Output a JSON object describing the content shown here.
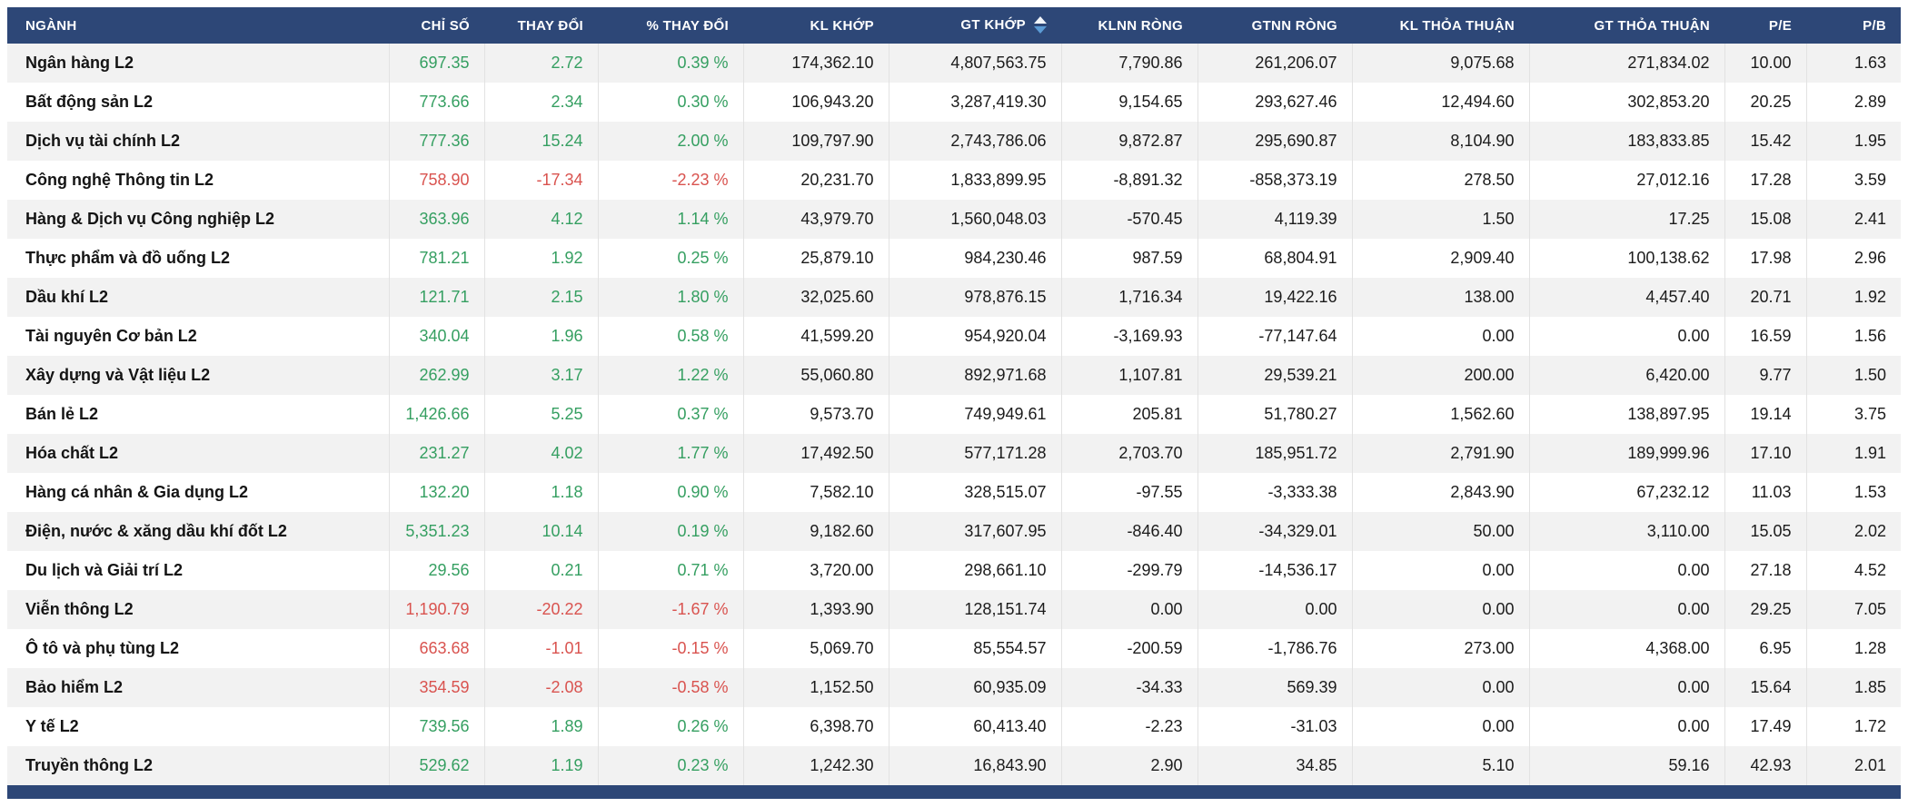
{
  "colors": {
    "header_bg": "#2d4777",
    "positive": "#359f61",
    "negative": "#d9534f",
    "row_alternate": "#f2f2f2",
    "sort_arrow_active": "#5b9bd5"
  },
  "table": {
    "sorted_by": "GT KHỚP",
    "columns": [
      {
        "key": "nganh",
        "label": "NGÀNH"
      },
      {
        "key": "chi-so",
        "label": "CHỈ SỐ"
      },
      {
        "key": "thay-doi",
        "label": "THAY ĐỔI"
      },
      {
        "key": "pct-thay-doi",
        "label": "% THAY ĐỔI"
      },
      {
        "key": "kl-khop",
        "label": "KL KHỚP"
      },
      {
        "key": "gt-khop",
        "label": "GT KHỚP"
      },
      {
        "key": "klnn-rong",
        "label": "KLNN RÒNG"
      },
      {
        "key": "gtnn-rong",
        "label": "GTNN RÒNG"
      },
      {
        "key": "kl-thoa-thuan",
        "label": "KL THỎA THUẬN"
      },
      {
        "key": "gt-thoa-thuan",
        "label": "GT THỎA THUẬN"
      },
      {
        "key": "pe",
        "label": "P/E"
      },
      {
        "key": "pb",
        "label": "P/B"
      }
    ],
    "rows": [
      {
        "name": "Ngân hàng L2",
        "trend": "up",
        "values": [
          "697.35",
          "2.72",
          "0.39 %",
          "174,362.10",
          "4,807,563.75",
          "7,790.86",
          "261,206.07",
          "9,075.68",
          "271,834.02",
          "10.00",
          "1.63"
        ]
      },
      {
        "name": "Bất động sản L2",
        "trend": "up",
        "values": [
          "773.66",
          "2.34",
          "0.30 %",
          "106,943.20",
          "3,287,419.30",
          "9,154.65",
          "293,627.46",
          "12,494.60",
          "302,853.20",
          "20.25",
          "2.89"
        ]
      },
      {
        "name": "Dịch vụ tài chính L2",
        "trend": "up",
        "values": [
          "777.36",
          "15.24",
          "2.00 %",
          "109,797.90",
          "2,743,786.06",
          "9,872.87",
          "295,690.87",
          "8,104.90",
          "183,833.85",
          "15.42",
          "1.95"
        ]
      },
      {
        "name": "Công nghệ Thông tin L2",
        "trend": "down",
        "values": [
          "758.90",
          "-17.34",
          "-2.23 %",
          "20,231.70",
          "1,833,899.95",
          "-8,891.32",
          "-858,373.19",
          "278.50",
          "27,012.16",
          "17.28",
          "3.59"
        ]
      },
      {
        "name": "Hàng & Dịch vụ Công nghiệp L2",
        "trend": "up",
        "values": [
          "363.96",
          "4.12",
          "1.14 %",
          "43,979.70",
          "1,560,048.03",
          "-570.45",
          "4,119.39",
          "1.50",
          "17.25",
          "15.08",
          "2.41"
        ]
      },
      {
        "name": "Thực phẩm và đồ uống L2",
        "trend": "up",
        "values": [
          "781.21",
          "1.92",
          "0.25 %",
          "25,879.10",
          "984,230.46",
          "987.59",
          "68,804.91",
          "2,909.40",
          "100,138.62",
          "17.98",
          "2.96"
        ]
      },
      {
        "name": "Dầu khí L2",
        "trend": "up",
        "values": [
          "121.71",
          "2.15",
          "1.80 %",
          "32,025.60",
          "978,876.15",
          "1,716.34",
          "19,422.16",
          "138.00",
          "4,457.40",
          "20.71",
          "1.92"
        ]
      },
      {
        "name": "Tài nguyên Cơ bản L2",
        "trend": "up",
        "values": [
          "340.04",
          "1.96",
          "0.58 %",
          "41,599.20",
          "954,920.04",
          "-3,169.93",
          "-77,147.64",
          "0.00",
          "0.00",
          "16.59",
          "1.56"
        ]
      },
      {
        "name": "Xây dựng và Vật liệu L2",
        "trend": "up",
        "values": [
          "262.99",
          "3.17",
          "1.22 %",
          "55,060.80",
          "892,971.68",
          "1,107.81",
          "29,539.21",
          "200.00",
          "6,420.00",
          "9.77",
          "1.50"
        ]
      },
      {
        "name": "Bán lẻ L2",
        "trend": "up",
        "values": [
          "1,426.66",
          "5.25",
          "0.37 %",
          "9,573.70",
          "749,949.61",
          "205.81",
          "51,780.27",
          "1,562.60",
          "138,897.95",
          "19.14",
          "3.75"
        ]
      },
      {
        "name": "Hóa chất L2",
        "trend": "up",
        "values": [
          "231.27",
          "4.02",
          "1.77 %",
          "17,492.50",
          "577,171.28",
          "2,703.70",
          "185,951.72",
          "2,791.90",
          "189,999.96",
          "17.10",
          "1.91"
        ]
      },
      {
        "name": "Hàng cá nhân & Gia dụng L2",
        "trend": "up",
        "values": [
          "132.20",
          "1.18",
          "0.90 %",
          "7,582.10",
          "328,515.07",
          "-97.55",
          "-3,333.38",
          "2,843.90",
          "67,232.12",
          "11.03",
          "1.53"
        ]
      },
      {
        "name": "Điện, nước & xăng dầu khí đốt L2",
        "trend": "up",
        "values": [
          "5,351.23",
          "10.14",
          "0.19 %",
          "9,182.60",
          "317,607.95",
          "-846.40",
          "-34,329.01",
          "50.00",
          "3,110.00",
          "15.05",
          "2.02"
        ]
      },
      {
        "name": "Du lịch và Giải trí L2",
        "trend": "up",
        "values": [
          "29.56",
          "0.21",
          "0.71 %",
          "3,720.00",
          "298,661.10",
          "-299.79",
          "-14,536.17",
          "0.00",
          "0.00",
          "27.18",
          "4.52"
        ]
      },
      {
        "name": "Viễn thông L2",
        "trend": "down",
        "values": [
          "1,190.79",
          "-20.22",
          "-1.67 %",
          "1,393.90",
          "128,151.74",
          "0.00",
          "0.00",
          "0.00",
          "0.00",
          "29.25",
          "7.05"
        ]
      },
      {
        "name": "Ô tô và phụ tùng L2",
        "trend": "down",
        "values": [
          "663.68",
          "-1.01",
          "-0.15 %",
          "5,069.70",
          "85,554.57",
          "-200.59",
          "-1,786.76",
          "273.00",
          "4,368.00",
          "6.95",
          "1.28"
        ]
      },
      {
        "name": "Bảo hiểm L2",
        "trend": "down",
        "values": [
          "354.59",
          "-2.08",
          "-0.58 %",
          "1,152.50",
          "60,935.09",
          "-34.33",
          "569.39",
          "0.00",
          "0.00",
          "15.64",
          "1.85"
        ]
      },
      {
        "name": "Y tế L2",
        "trend": "up",
        "values": [
          "739.56",
          "1.89",
          "0.26 %",
          "6,398.70",
          "60,413.40",
          "-2.23",
          "-31.03",
          "0.00",
          "0.00",
          "17.49",
          "1.72"
        ]
      },
      {
        "name": "Truyền thông L2",
        "trend": "up",
        "values": [
          "529.62",
          "1.19",
          "0.23 %",
          "1,242.30",
          "16,843.90",
          "2.90",
          "34.85",
          "5.10",
          "59.16",
          "42.93",
          "2.01"
        ]
      }
    ]
  }
}
